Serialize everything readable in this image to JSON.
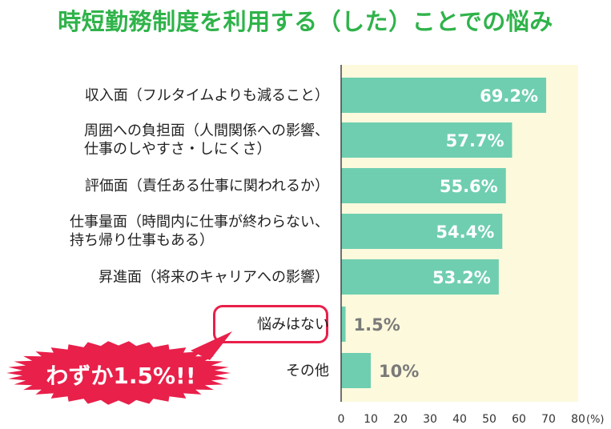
{
  "title": "時短勤務制度を利用する（した）ことでの悩み",
  "callout": {
    "text": "わずか1.5%!!",
    "color": "#e8204a"
  },
  "colors": {
    "title": "#2fb34a",
    "bar": "#6fceb0",
    "plot_background": "#fdf9dc",
    "highlight": "#e8204a"
  },
  "chart_data": {
    "type": "bar",
    "orientation": "horizontal",
    "unit_label": "(%)",
    "xlim": [
      0,
      80
    ],
    "xticks": [
      "0",
      "10",
      "20",
      "30",
      "40",
      "50",
      "60",
      "70",
      "80"
    ],
    "grid": false,
    "categories": [
      [
        "収入面（フルタイムよりも減ること）"
      ],
      [
        "周囲への負担面（人間関係への影響、",
        "仕事のしやすさ・しにくさ）"
      ],
      [
        "評価面（責任ある仕事に関われるか）"
      ],
      [
        "仕事量面（時間内に仕事が終わらない、",
        "持ち帰り仕事もある）"
      ],
      [
        "昇進面（将来のキャリアへの影響）"
      ],
      [
        "悩みはない"
      ],
      [
        "その他"
      ]
    ],
    "values": [
      69.2,
      57.7,
      55.6,
      54.4,
      53.2,
      1.5,
      10
    ],
    "value_labels": [
      "69.2%",
      "57.7%",
      "55.6%",
      "54.4%",
      "53.2%",
      "1.5%",
      "10%"
    ],
    "highlighted_category_index": 5
  }
}
